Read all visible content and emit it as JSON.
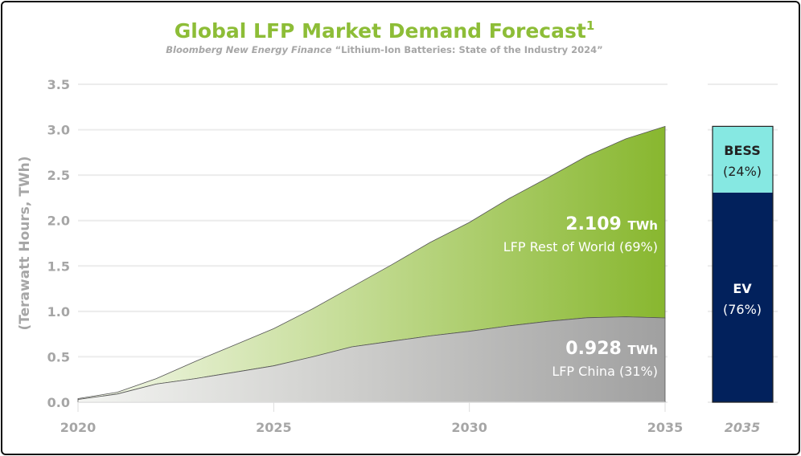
{
  "chart_data": {
    "type": "area",
    "stacked": true,
    "title": "Global LFP Market Demand Forecast",
    "title_superscript": "1",
    "subtitle_source": "Bloomberg New Energy Finance",
    "subtitle_report": "“Lithium-Ion Batteries: State of the Industry 2024”",
    "ylabel": "(Terawatt Hours, TWh)",
    "xlabel": "",
    "x": [
      2020,
      2021,
      2022,
      2023,
      2024,
      2025,
      2026,
      2027,
      2028,
      2029,
      2030,
      2031,
      2032,
      2033,
      2034,
      2035
    ],
    "xticks": [
      "2020",
      "2025",
      "2030",
      "2035"
    ],
    "yticks": [
      "0.0",
      "0.5",
      "1.0",
      "1.5",
      "2.0",
      "2.5",
      "3.0",
      "3.5"
    ],
    "ylim": [
      0,
      3.5
    ],
    "grid": true,
    "series": [
      {
        "name": "LFP China",
        "color": "#a0a0a0",
        "values": [
          0.03,
          0.09,
          0.2,
          0.26,
          0.33,
          0.4,
          0.5,
          0.61,
          0.67,
          0.73,
          0.78,
          0.84,
          0.89,
          0.93,
          0.94,
          0.928
        ]
      },
      {
        "name": "LFP Rest of World",
        "color": "#8ab833",
        "values": [
          0.01,
          0.02,
          0.06,
          0.19,
          0.3,
          0.41,
          0.53,
          0.66,
          0.84,
          1.03,
          1.2,
          1.4,
          1.58,
          1.78,
          1.96,
          2.109
        ]
      }
    ],
    "annotations": [
      {
        "value": "2.109",
        "unit": "TWh",
        "label": "LFP Rest of World (69%)"
      },
      {
        "value": "0.928",
        "unit": "TWh",
        "label": "LFP China (31%)"
      }
    ],
    "side_bar": {
      "category": "2035",
      "segments": [
        {
          "name": "EV",
          "percent": 76,
          "label": "(76%)",
          "color": "#02215c"
        },
        {
          "name": "BESS",
          "percent": 24,
          "label": "(24%)",
          "color": "#86e8e2"
        }
      ]
    }
  }
}
